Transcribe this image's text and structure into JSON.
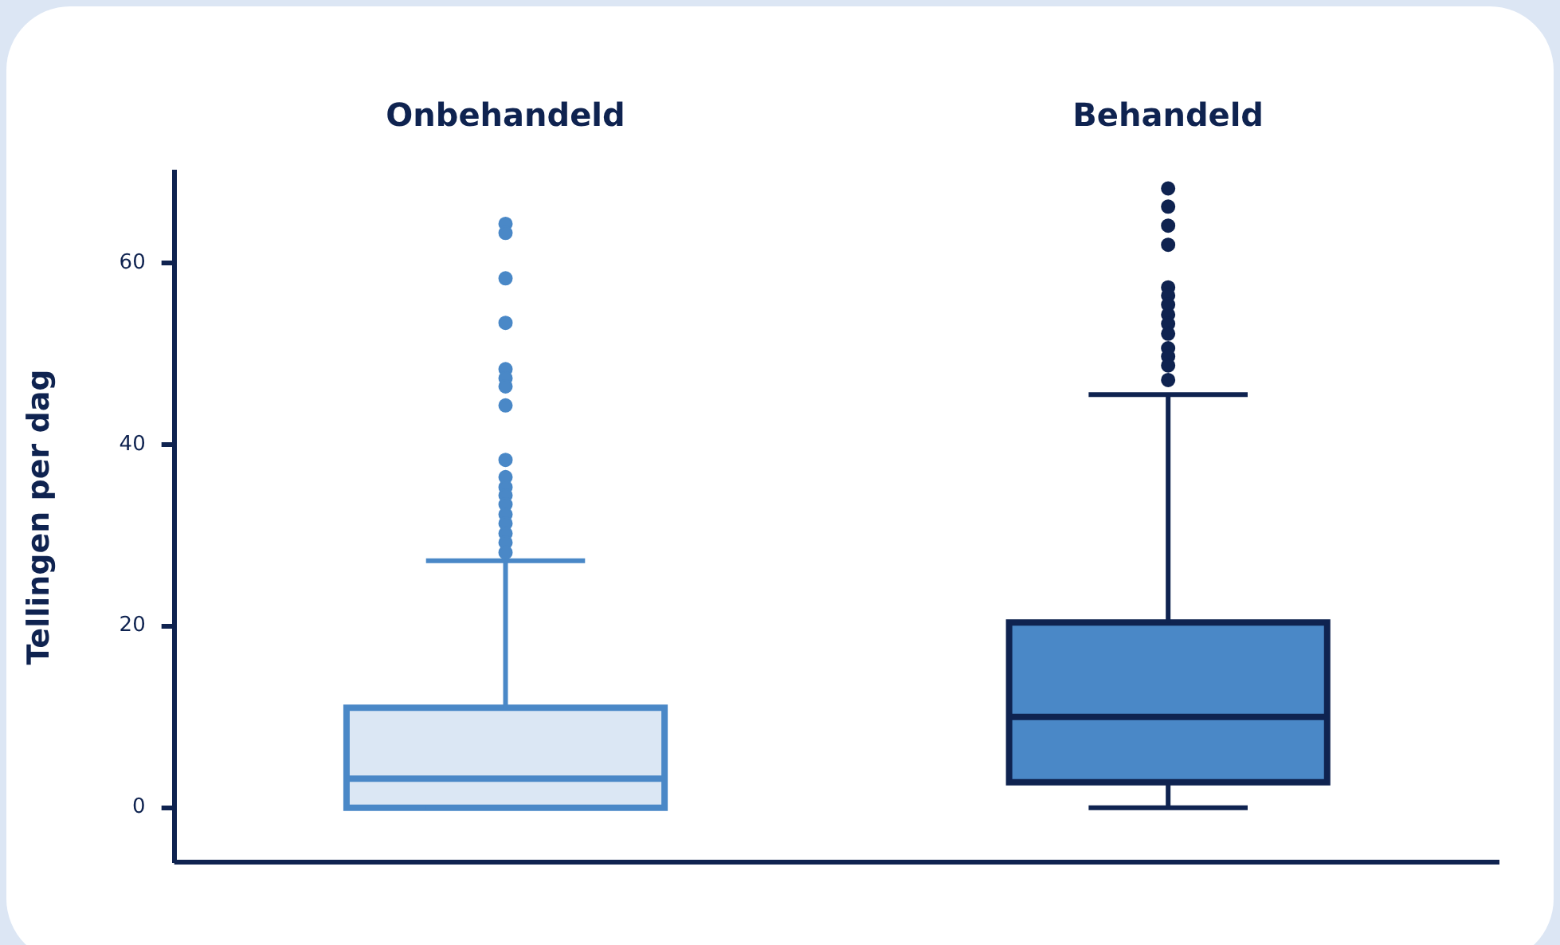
{
  "chart_data": {
    "type": "box",
    "ylabel": "Tellingen per dag",
    "categories": [
      "Onbehandeld",
      "Behandeld"
    ],
    "colors": [
      "#dbe7f4",
      "#4a88c7"
    ],
    "boxes": [
      {
        "low": 0,
        "q1": 0,
        "median": 3.2,
        "q3": 11,
        "high": 27.2,
        "outliers": [
          64.3,
          63.3,
          58.3,
          53.4,
          48.3,
          47.3,
          46.4,
          44.3,
          38.3,
          36.4,
          35.3,
          34.4,
          33.4,
          32.3,
          31.3,
          30.2,
          29.2,
          28.1
        ]
      },
      {
        "low": 0,
        "q1": 2.8,
        "median": 10,
        "q3": 20.4,
        "high": 45.5,
        "outliers": [
          68.2,
          66.2,
          64.1,
          62.0,
          57.3,
          56.4,
          55.4,
          54.3,
          53.3,
          52.2,
          50.6,
          49.7,
          48.7,
          47.1
        ]
      }
    ],
    "ylim": [
      -6,
      70
    ],
    "yticks": [
      0,
      20,
      40,
      60
    ],
    "grid": false,
    "legend": false
  }
}
